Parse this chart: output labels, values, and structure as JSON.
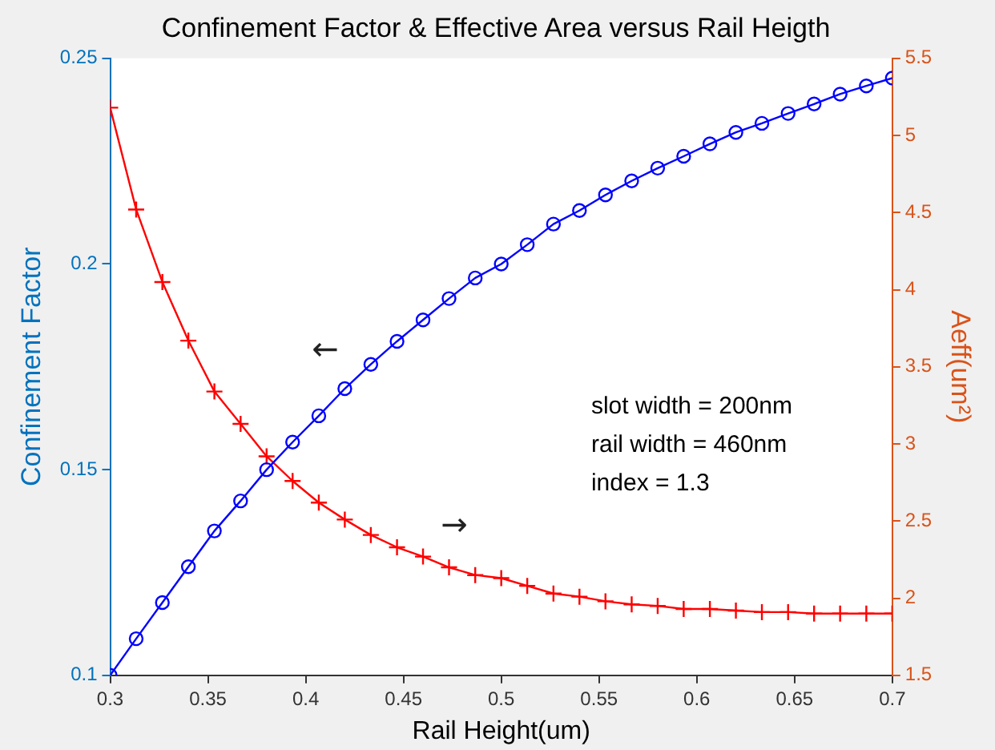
{
  "chart_data": {
    "type": "line",
    "title": "Confinement Factor & Effective Area versus Rail Heigth",
    "xlabel": "Rail Height(um)",
    "ylabel": "Confinement Factor",
    "y2label": "Aeff(um²)",
    "x": [
      0.3,
      0.3133,
      0.3267,
      0.34,
      0.3533,
      0.3667,
      0.38,
      0.3933,
      0.4067,
      0.42,
      0.4333,
      0.4467,
      0.46,
      0.4733,
      0.4867,
      0.5,
      0.5133,
      0.5267,
      0.54,
      0.5533,
      0.5667,
      0.58,
      0.5933,
      0.6067,
      0.62,
      0.6333,
      0.6467,
      0.66,
      0.6733,
      0.6867,
      0.7
    ],
    "series": [
      {
        "color": "#0000ff",
        "marker": "circle",
        "values": [
          0.1,
          0.1089,
          0.1177,
          0.1264,
          0.1351,
          0.1424,
          0.15,
          0.1567,
          0.1631,
          0.1697,
          0.1756,
          0.1812,
          0.1864,
          0.1916,
          0.1966,
          0.2,
          0.2047,
          0.2097,
          0.213,
          0.2168,
          0.2202,
          0.2233,
          0.2262,
          0.2292,
          0.232,
          0.2342,
          0.2366,
          0.2389,
          0.2413,
          0.2433,
          0.2452
        ]
      },
      {
        "color": "#ff0000",
        "marker": "cross",
        "axis": "y2",
        "values": [
          5.18,
          4.52,
          4.05,
          3.67,
          3.34,
          3.13,
          2.92,
          2.76,
          2.62,
          2.51,
          2.41,
          2.33,
          2.27,
          2.2,
          2.15,
          2.13,
          2.08,
          2.03,
          2.01,
          1.98,
          1.96,
          1.95,
          1.93,
          1.93,
          1.92,
          1.91,
          1.91,
          1.9,
          1.9,
          1.9,
          1.9
        ]
      }
    ],
    "xlim": [
      0.3,
      0.7
    ],
    "xticks": [
      0.3,
      0.35,
      0.4,
      0.45,
      0.5,
      0.55,
      0.6,
      0.65,
      0.7
    ],
    "ylim": [
      0.1,
      0.25
    ],
    "yticks": [
      0.1,
      0.15,
      0.2,
      0.25
    ],
    "y2lim": [
      1.5,
      5.5
    ],
    "y2ticks": [
      1.5,
      2,
      2.5,
      3,
      3.5,
      4,
      4.5,
      5,
      5.5
    ],
    "grid": false,
    "legend": false,
    "annotations": [
      "←",
      "→",
      "slot width = 200nm",
      "rail width = 460nm",
      "index = 1.3"
    ]
  }
}
